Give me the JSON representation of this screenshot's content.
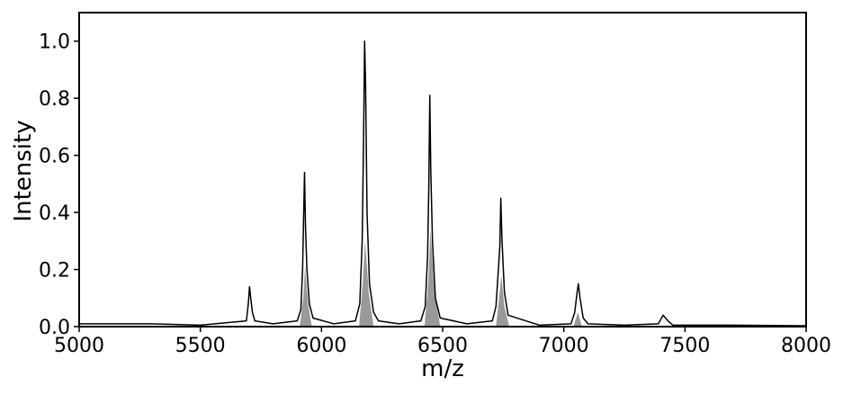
{
  "chart_data": {
    "type": "line",
    "xlabel": "m/z",
    "ylabel": "Intensity",
    "xlim": [
      5000,
      8000
    ],
    "xticks": [
      5000,
      5500,
      6000,
      6500,
      7000,
      7500,
      8000
    ],
    "ylim": [
      0,
      1.1
    ],
    "yticks": [
      {
        "value": 0,
        "label": "0.0"
      },
      0.2,
      0.4,
      0.6,
      0.8,
      {
        "value": 1,
        "label": "1.0"
      }
    ],
    "series": [
      {
        "color": "#999999",
        "fill": true,
        "x": [
          5000,
          5910,
          5925,
          5932,
          5945,
          5960,
          6155,
          6170,
          6180,
          6195,
          6215,
          6425,
          6440,
          6450,
          6465,
          6490,
          6720,
          6733,
          6742,
          6755,
          6775,
          7040,
          7058,
          7075,
          8000
        ],
        "values": [
          0,
          0,
          0.1,
          0.21,
          0.08,
          0,
          0,
          0.15,
          0.3,
          0.12,
          0,
          0,
          0.15,
          0.34,
          0.13,
          0,
          0,
          0.1,
          0.18,
          0.07,
          0,
          0,
          0.05,
          0,
          0
        ]
      },
      {
        "color": "#000000",
        "fill": false,
        "x": [
          5000,
          5300,
          5500,
          5690,
          5698,
          5703,
          5708,
          5715,
          5725,
          5800,
          5900,
          5915,
          5922,
          5926,
          5930,
          5934,
          5940,
          5950,
          5965,
          6050,
          6140,
          6158,
          6168,
          6174,
          6178,
          6182,
          6188,
          6198,
          6215,
          6235,
          6320,
          6410,
          6428,
          6438,
          6443,
          6447,
          6451,
          6458,
          6470,
          6490,
          6600,
          6705,
          6720,
          6730,
          6736,
          6740,
          6745,
          6755,
          6770,
          6900,
          7030,
          7045,
          7055,
          7060,
          7067,
          7080,
          7100,
          7250,
          7390,
          7410,
          7430,
          7450,
          7700,
          8000
        ],
        "values": [
          0.01,
          0.01,
          0.005,
          0.02,
          0.08,
          0.14,
          0.1,
          0.05,
          0.02,
          0.01,
          0.02,
          0.06,
          0.2,
          0.37,
          0.54,
          0.35,
          0.2,
          0.08,
          0.03,
          0.01,
          0.02,
          0.08,
          0.3,
          0.68,
          1.0,
          0.85,
          0.4,
          0.15,
          0.05,
          0.02,
          0.01,
          0.02,
          0.07,
          0.25,
          0.5,
          0.81,
          0.55,
          0.3,
          0.1,
          0.03,
          0.01,
          0.02,
          0.07,
          0.2,
          0.28,
          0.45,
          0.3,
          0.12,
          0.04,
          0.005,
          0.01,
          0.05,
          0.12,
          0.15,
          0.1,
          0.03,
          0.01,
          0.005,
          0.01,
          0.04,
          0.02,
          0.005,
          0.005,
          0.003
        ]
      }
    ]
  }
}
